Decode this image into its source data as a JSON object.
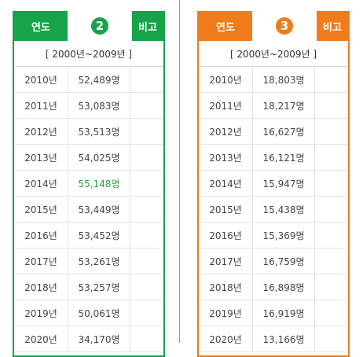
{
  "left_table": {
    "header_year": "연도",
    "header_badge": "2",
    "header_note": "비고",
    "range": "[ 2000년~2009년 ]",
    "rows": [
      {
        "year": "2010년",
        "value": "52,489명"
      },
      {
        "year": "2011년",
        "value": "53,083명"
      },
      {
        "year": "2012년",
        "value": "53,513명"
      },
      {
        "year": "2013년",
        "value": "54,025명"
      },
      {
        "year": "2014년",
        "value": "55,148명"
      },
      {
        "year": "2015년",
        "value": "53,449명"
      },
      {
        "year": "2016년",
        "value": "53,452명"
      },
      {
        "year": "2017년",
        "value": "53,261명"
      },
      {
        "year": "2018년",
        "value": "53,257명"
      },
      {
        "year": "2019년",
        "value": "50,061명"
      },
      {
        "year": "2020년",
        "value": "34,170명"
      }
    ],
    "highlight_row": "2014년",
    "accent": "#16a34a",
    "highlight_color": "#2e9b45"
  },
  "right_table": {
    "header_year": "연도",
    "header_badge": "3",
    "header_note": "비고",
    "range": "[ 2000년~2009년 ]",
    "rows": [
      {
        "year": "2010년",
        "value": "18,803명"
      },
      {
        "year": "2011년",
        "value": "18,217명"
      },
      {
        "year": "2012년",
        "value": "16,627명"
      },
      {
        "year": "2013년",
        "value": "16,121명"
      },
      {
        "year": "2014년",
        "value": "15,947명"
      },
      {
        "year": "2015년",
        "value": "15,438명"
      },
      {
        "year": "2016년",
        "value": "15,369명"
      },
      {
        "year": "2017년",
        "value": "16,759명"
      },
      {
        "year": "2018년",
        "value": "16,898명"
      },
      {
        "year": "2019년",
        "value": "16,919명"
      },
      {
        "year": "2020년",
        "value": "13,166명"
      }
    ],
    "accent": "#f07c1b"
  }
}
